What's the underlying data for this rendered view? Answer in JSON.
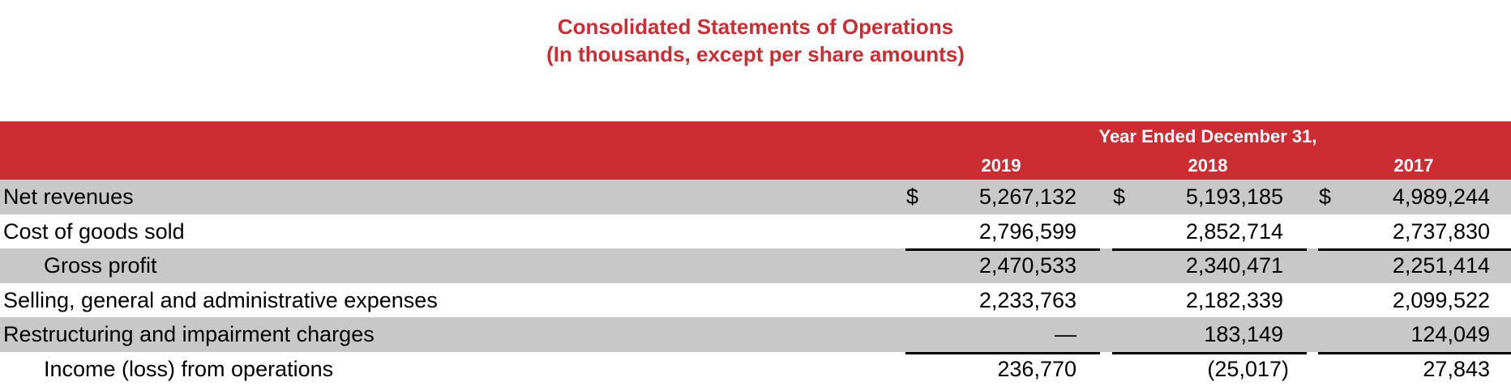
{
  "title": {
    "line1": "Consolidated Statements of Operations",
    "line2": "(In thousands, except per share amounts)"
  },
  "header": {
    "span_label": "Year Ended December 31,",
    "years": [
      "2019",
      "2018",
      "2017"
    ]
  },
  "currency_symbol": "$",
  "rows": [
    {
      "label": "Net revenues",
      "values": [
        "5,267,132",
        "5,193,185",
        "4,989,244"
      ]
    },
    {
      "label": "Cost of goods sold",
      "values": [
        "2,796,599",
        "2,852,714",
        "2,737,830"
      ]
    },
    {
      "label": "Gross profit",
      "values": [
        "2,470,533",
        "2,340,471",
        "2,251,414"
      ]
    },
    {
      "label": "Selling, general and administrative expenses",
      "values": [
        "2,233,763",
        "2,182,339",
        "2,099,522"
      ]
    },
    {
      "label": "Restructuring and impairment charges",
      "values": [
        "—",
        "183,149",
        "124,049"
      ]
    },
    {
      "label": "Income (loss) from operations",
      "values": [
        "236,770",
        "(25,017)",
        "27,843"
      ]
    }
  ],
  "colors": {
    "brand_red": "#cc2d33",
    "row_shade": "#c8c8c8"
  }
}
